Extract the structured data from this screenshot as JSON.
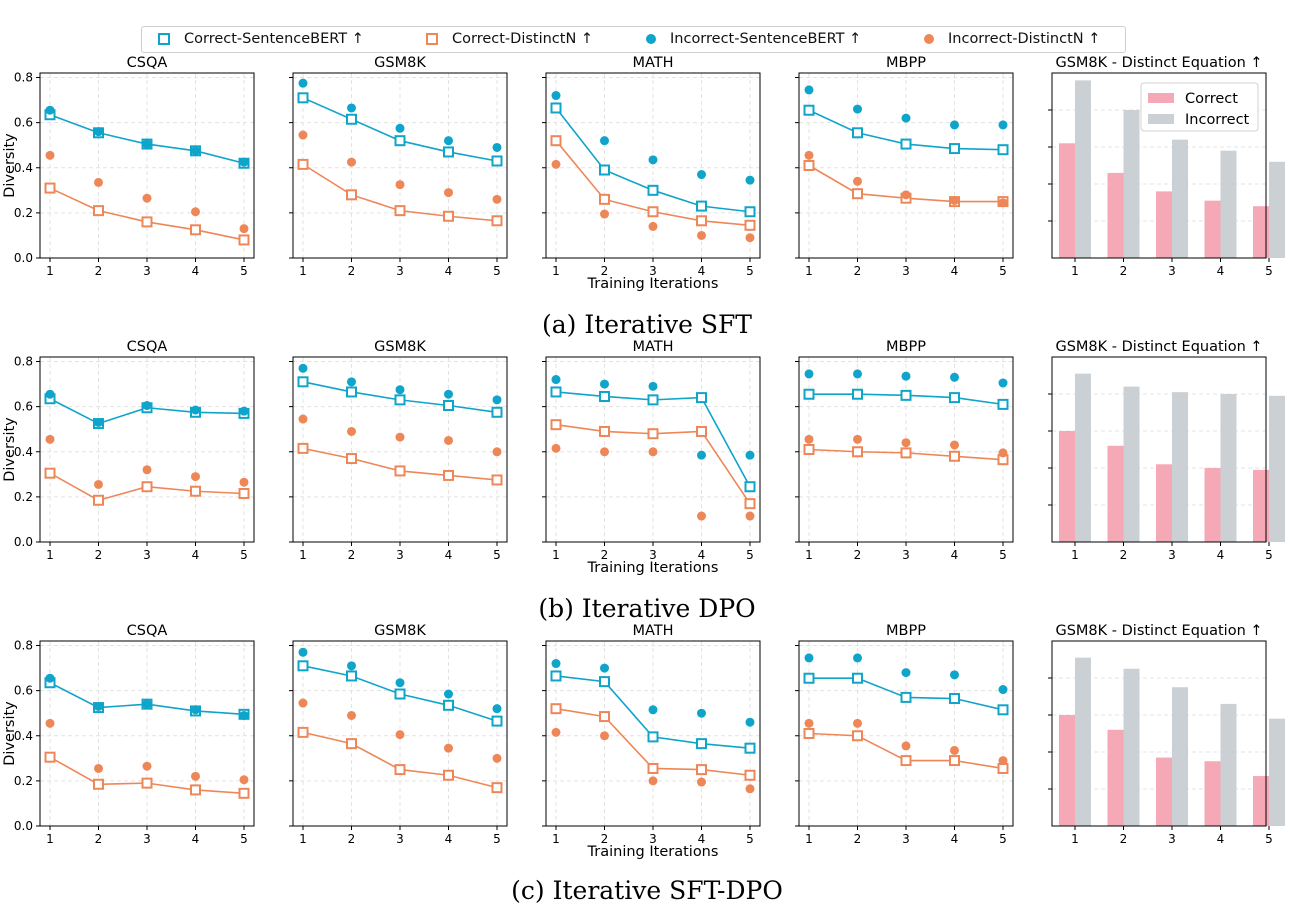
{
  "legend": {
    "items": [
      {
        "label": "Correct-SentenceBERT ↑",
        "marker": "square-open",
        "color": "#0fa4c9"
      },
      {
        "label": "Correct-DistinctN ↑",
        "marker": "square-open",
        "color": "#ee8758"
      },
      {
        "label": "Incorrect-SentenceBERT ↑",
        "marker": "circle",
        "color": "#0fa4c9"
      },
      {
        "label": "Incorrect-DistinctN ↑",
        "marker": "circle",
        "color": "#ee8758"
      }
    ]
  },
  "colors": {
    "blue": "#0fa4c9",
    "orange": "#ee8758",
    "bar_correct": "#f5a9b6",
    "bar_incorrect": "#cbd0d4"
  },
  "chart_data": [
    {
      "caption": "(a) Iterative SFT",
      "ylabel": "Diversity",
      "xlabel": "Training Iterations",
      "yticks": [
        "0.0",
        "0.2",
        "0.4",
        "0.6",
        "0.8"
      ],
      "panels": [
        {
          "type": "line",
          "title": "CSQA",
          "x": [
            1,
            2,
            3,
            4,
            5
          ],
          "ylim": [
            0,
            0.82
          ],
          "series": [
            {
              "name": "Correct-SentenceBERT ↑",
              "values": [
                0.635,
                0.555,
                0.505,
                0.475,
                0.42
              ]
            },
            {
              "name": "Correct-DistinctN ↑",
              "values": [
                0.31,
                0.21,
                0.16,
                0.125,
                0.08
              ]
            },
            {
              "name": "Incorrect-SentenceBERT ↑",
              "values": [
                0.655,
                0.56,
                0.505,
                0.475,
                0.425
              ]
            },
            {
              "name": "Incorrect-DistinctN ↑",
              "values": [
                0.455,
                0.335,
                0.265,
                0.205,
                0.13
              ]
            }
          ]
        },
        {
          "type": "line",
          "title": "GSM8K",
          "x": [
            1,
            2,
            3,
            4,
            5
          ],
          "ylim": [
            0,
            0.82
          ],
          "series": [
            {
              "name": "Correct-SentenceBERT ↑",
              "values": [
                0.71,
                0.615,
                0.52,
                0.47,
                0.43
              ]
            },
            {
              "name": "Correct-DistinctN ↑",
              "values": [
                0.415,
                0.28,
                0.21,
                0.185,
                0.165
              ]
            },
            {
              "name": "Incorrect-SentenceBERT ↑",
              "values": [
                0.775,
                0.665,
                0.575,
                0.52,
                0.49
              ]
            },
            {
              "name": "Incorrect-DistinctN ↑",
              "values": [
                0.545,
                0.425,
                0.325,
                0.29,
                0.26
              ]
            }
          ]
        },
        {
          "type": "line",
          "title": "MATH",
          "x": [
            1,
            2,
            3,
            4,
            5
          ],
          "ylim": [
            0,
            0.82
          ],
          "series": [
            {
              "name": "Correct-SentenceBERT ↑",
              "values": [
                0.665,
                0.39,
                0.3,
                0.23,
                0.205
              ]
            },
            {
              "name": "Correct-DistinctN ↑",
              "values": [
                0.52,
                0.26,
                0.205,
                0.165,
                0.145
              ]
            },
            {
              "name": "Incorrect-SentenceBERT ↑",
              "values": [
                0.72,
                0.52,
                0.435,
                0.37,
                0.345
              ]
            },
            {
              "name": "Incorrect-DistinctN ↑",
              "values": [
                0.415,
                0.195,
                0.14,
                0.1,
                0.09
              ]
            }
          ]
        },
        {
          "type": "line",
          "title": "MBPP",
          "x": [
            1,
            2,
            3,
            4,
            5
          ],
          "ylim": [
            0,
            0.82
          ],
          "series": [
            {
              "name": "Correct-SentenceBERT ↑",
              "values": [
                0.655,
                0.555,
                0.505,
                0.485,
                0.48
              ]
            },
            {
              "name": "Correct-DistinctN ↑",
              "values": [
                0.41,
                0.285,
                0.265,
                0.25,
                0.25
              ]
            },
            {
              "name": "Incorrect-SentenceBERT ↑",
              "values": [
                0.745,
                0.66,
                0.62,
                0.59,
                0.59
              ]
            },
            {
              "name": "Incorrect-DistinctN ↑",
              "values": [
                0.455,
                0.34,
                0.28,
                0.255,
                0.245
              ]
            }
          ]
        },
        {
          "type": "bar",
          "title": "GSM8K - Distinct Equation ↑",
          "categories": [
            "1",
            "2",
            "3",
            "4",
            "5"
          ],
          "ylim": [
            0,
            1
          ],
          "legend": "top-right",
          "series": [
            {
              "name": "Correct",
              "values": [
                0.62,
                0.46,
                0.36,
                0.31,
                0.28
              ]
            },
            {
              "name": "Incorrect",
              "values": [
                0.96,
                0.8,
                0.64,
                0.58,
                0.52
              ]
            }
          ]
        }
      ]
    },
    {
      "caption": "(b) Iterative DPO",
      "ylabel": "Diversity",
      "xlabel": "Training Iterations",
      "yticks": [
        "0.0",
        "0.2",
        "0.4",
        "0.6",
        "0.8"
      ],
      "panels": [
        {
          "type": "line",
          "title": "CSQA",
          "x": [
            1,
            2,
            3,
            4,
            5
          ],
          "ylim": [
            0,
            0.82
          ],
          "series": [
            {
              "name": "Correct-SentenceBERT ↑",
              "values": [
                0.635,
                0.525,
                0.595,
                0.575,
                0.57
              ]
            },
            {
              "name": "Correct-DistinctN ↑",
              "values": [
                0.305,
                0.185,
                0.245,
                0.225,
                0.215
              ]
            },
            {
              "name": "Incorrect-SentenceBERT ↑",
              "values": [
                0.655,
                0.53,
                0.605,
                0.585,
                0.58
              ]
            },
            {
              "name": "Incorrect-DistinctN ↑",
              "values": [
                0.455,
                0.255,
                0.32,
                0.29,
                0.265
              ]
            }
          ]
        },
        {
          "type": "line",
          "title": "GSM8K",
          "x": [
            1,
            2,
            3,
            4,
            5
          ],
          "ylim": [
            0,
            0.82
          ],
          "series": [
            {
              "name": "Correct-SentenceBERT ↑",
              "values": [
                0.71,
                0.665,
                0.63,
                0.605,
                0.575
              ]
            },
            {
              "name": "Correct-DistinctN ↑",
              "values": [
                0.415,
                0.37,
                0.315,
                0.295,
                0.275
              ]
            },
            {
              "name": "Incorrect-SentenceBERT ↑",
              "values": [
                0.77,
                0.71,
                0.675,
                0.655,
                0.63
              ]
            },
            {
              "name": "Incorrect-DistinctN ↑",
              "values": [
                0.545,
                0.49,
                0.465,
                0.45,
                0.4
              ]
            }
          ]
        },
        {
          "type": "line",
          "title": "MATH",
          "x": [
            1,
            2,
            3,
            4,
            5
          ],
          "ylim": [
            0,
            0.82
          ],
          "series": [
            {
              "name": "Correct-SentenceBERT ↑",
              "values": [
                0.665,
                0.645,
                0.63,
                0.64,
                0.245
              ]
            },
            {
              "name": "Correct-DistinctN ↑",
              "values": [
                0.52,
                0.49,
                0.48,
                0.49,
                0.17
              ]
            },
            {
              "name": "Incorrect-SentenceBERT ↑",
              "values": [
                0.72,
                0.7,
                0.69,
                0.385,
                0.385
              ]
            },
            {
              "name": "Incorrect-DistinctN ↑",
              "values": [
                0.415,
                0.4,
                0.4,
                0.115,
                0.115
              ]
            }
          ]
        },
        {
          "type": "line",
          "title": "MBPP",
          "x": [
            1,
            2,
            3,
            4,
            5
          ],
          "ylim": [
            0,
            0.82
          ],
          "series": [
            {
              "name": "Correct-SentenceBERT ↑",
              "values": [
                0.655,
                0.655,
                0.65,
                0.64,
                0.61
              ]
            },
            {
              "name": "Correct-DistinctN ↑",
              "values": [
                0.41,
                0.4,
                0.395,
                0.38,
                0.365
              ]
            },
            {
              "name": "Incorrect-SentenceBERT ↑",
              "values": [
                0.745,
                0.745,
                0.735,
                0.73,
                0.705
              ]
            },
            {
              "name": "Incorrect-DistinctN ↑",
              "values": [
                0.455,
                0.455,
                0.44,
                0.43,
                0.395
              ]
            }
          ]
        },
        {
          "type": "bar",
          "title": "GSM8K - Distinct Equation ↑",
          "categories": [
            "1",
            "2",
            "3",
            "4",
            "5"
          ],
          "ylim": [
            0,
            1
          ],
          "series": [
            {
              "name": "Correct",
              "values": [
                0.6,
                0.52,
                0.42,
                0.4,
                0.39
              ]
            },
            {
              "name": "Incorrect",
              "values": [
                0.91,
                0.84,
                0.81,
                0.8,
                0.79
              ]
            }
          ]
        }
      ]
    },
    {
      "caption": "(c) Iterative SFT-DPO",
      "ylabel": "Diversity",
      "xlabel": "Training Iterations",
      "yticks": [
        "0.0",
        "0.2",
        "0.4",
        "0.6",
        "0.8"
      ],
      "panels": [
        {
          "type": "line",
          "title": "CSQA",
          "x": [
            1,
            2,
            3,
            4,
            5
          ],
          "ylim": [
            0,
            0.82
          ],
          "series": [
            {
              "name": "Correct-SentenceBERT ↑",
              "values": [
                0.635,
                0.525,
                0.54,
                0.51,
                0.495
              ]
            },
            {
              "name": "Correct-DistinctN ↑",
              "values": [
                0.305,
                0.185,
                0.19,
                0.16,
                0.145
              ]
            },
            {
              "name": "Incorrect-SentenceBERT ↑",
              "values": [
                0.655,
                0.53,
                0.54,
                0.515,
                0.49
              ]
            },
            {
              "name": "Incorrect-DistinctN ↑",
              "values": [
                0.455,
                0.255,
                0.265,
                0.22,
                0.205
              ]
            }
          ]
        },
        {
          "type": "line",
          "title": "GSM8K",
          "x": [
            1,
            2,
            3,
            4,
            5
          ],
          "ylim": [
            0,
            0.82
          ],
          "series": [
            {
              "name": "Correct-SentenceBERT ↑",
              "values": [
                0.71,
                0.665,
                0.585,
                0.535,
                0.465
              ]
            },
            {
              "name": "Correct-DistinctN ↑",
              "values": [
                0.415,
                0.365,
                0.25,
                0.225,
                0.17
              ]
            },
            {
              "name": "Incorrect-SentenceBERT ↑",
              "values": [
                0.77,
                0.71,
                0.635,
                0.585,
                0.52
              ]
            },
            {
              "name": "Incorrect-DistinctN ↑",
              "values": [
                0.545,
                0.49,
                0.405,
                0.345,
                0.3
              ]
            }
          ]
        },
        {
          "type": "line",
          "title": "MATH",
          "x": [
            1,
            2,
            3,
            4,
            5
          ],
          "ylim": [
            0,
            0.82
          ],
          "series": [
            {
              "name": "Correct-SentenceBERT ↑",
              "values": [
                0.665,
                0.64,
                0.395,
                0.365,
                0.345
              ]
            },
            {
              "name": "Correct-DistinctN ↑",
              "values": [
                0.52,
                0.485,
                0.255,
                0.25,
                0.225
              ]
            },
            {
              "name": "Incorrect-SentenceBERT ↑",
              "values": [
                0.72,
                0.7,
                0.515,
                0.5,
                0.46
              ]
            },
            {
              "name": "Incorrect-DistinctN ↑",
              "values": [
                0.415,
                0.4,
                0.2,
                0.195,
                0.165
              ]
            }
          ]
        },
        {
          "type": "line",
          "title": "MBPP",
          "x": [
            1,
            2,
            3,
            4,
            5
          ],
          "ylim": [
            0,
            0.82
          ],
          "series": [
            {
              "name": "Correct-SentenceBERT ↑",
              "values": [
                0.655,
                0.655,
                0.57,
                0.565,
                0.515
              ]
            },
            {
              "name": "Correct-DistinctN ↑",
              "values": [
                0.41,
                0.4,
                0.29,
                0.29,
                0.255
              ]
            },
            {
              "name": "Incorrect-SentenceBERT ↑",
              "values": [
                0.745,
                0.745,
                0.68,
                0.67,
                0.605
              ]
            },
            {
              "name": "Incorrect-DistinctN ↑",
              "values": [
                0.455,
                0.455,
                0.355,
                0.335,
                0.29
              ]
            }
          ]
        },
        {
          "type": "bar",
          "title": "GSM8K - Distinct Equation ↑",
          "categories": [
            "1",
            "2",
            "3",
            "4",
            "5"
          ],
          "ylim": [
            0,
            1
          ],
          "series": [
            {
              "name": "Correct",
              "values": [
                0.6,
                0.52,
                0.37,
                0.35,
                0.27
              ]
            },
            {
              "name": "Incorrect",
              "values": [
                0.91,
                0.85,
                0.75,
                0.66,
                0.58
              ]
            }
          ]
        }
      ]
    }
  ]
}
